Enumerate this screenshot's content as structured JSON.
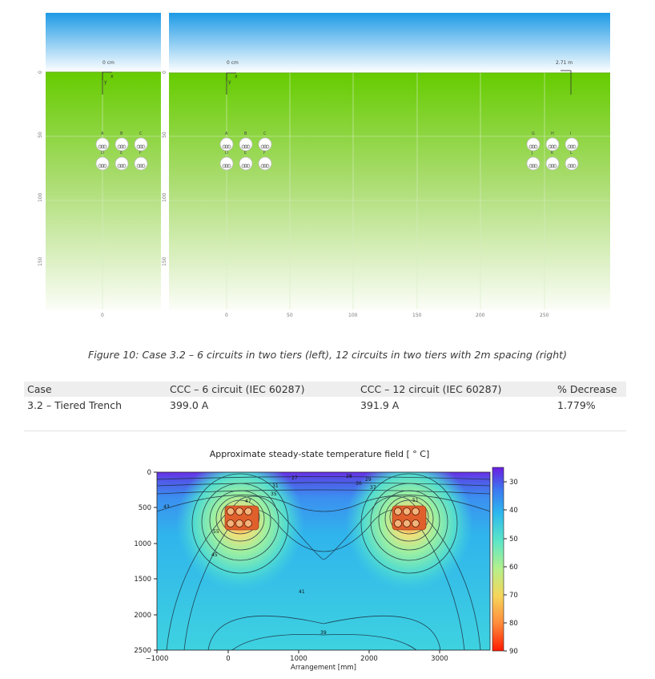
{
  "figure10": {
    "left_panel": {
      "offset_label": "0 cm",
      "axis_x_label": "x",
      "axis_y_label": "y",
      "y_ticks": [
        "0",
        "50",
        "100",
        "150"
      ],
      "x_ticks": [
        "0"
      ],
      "cable_labels_top": [
        "A",
        "B",
        "C"
      ],
      "cable_labels_bottom": [
        "D",
        "E",
        "F"
      ]
    },
    "right_panel": {
      "offset_label_left": "0 cm",
      "offset_label_right": "2.71 m",
      "axis_x_label": "x",
      "axis_y_label": "y",
      "y_ticks": [
        "0",
        "50",
        "100",
        "150"
      ],
      "x_ticks": [
        "0",
        "50",
        "100",
        "150",
        "200",
        "250"
      ],
      "cable_labels_top_left": [
        "A",
        "B",
        "C"
      ],
      "cable_labels_bottom_left": [
        "D",
        "E",
        "F"
      ],
      "cable_labels_top_right": [
        "G",
        "H",
        "I"
      ],
      "cable_labels_bottom_right": [
        "J",
        "K",
        "L"
      ]
    },
    "colors": {
      "sky_top": "#1e9ae6",
      "sky_bottom": "#ffffff",
      "soil_top": "#66cc00",
      "soil_bottom": "#fbfdf7"
    }
  },
  "caption": "Figure 10: Case 3.2 – 6 circuits in two tiers (left), 12 circuits in two tiers with 2m spacing (right)",
  "table": {
    "headers": [
      "Case",
      "CCC – 6 circuit (IEC 60287)",
      "CCC – 12 circuit (IEC 60287)",
      "% Decrease"
    ],
    "rows": [
      [
        "3.2 – Tiered Trench",
        "399.0 A",
        "391.9 A",
        "1.779%"
      ]
    ]
  },
  "heatmap": {
    "title": "Approximate steady-state temperature field [ ° C]",
    "xlabel": "Arrangement [mm]",
    "x_ticks": [
      "−1000",
      "0",
      "1000",
      "2000",
      "3000"
    ],
    "y_ticks": [
      "0",
      "500",
      "1000",
      "1500",
      "2000",
      "2500"
    ],
    "colorbar_ticks": [
      "30",
      "40",
      "50",
      "60",
      "70",
      "80",
      "90"
    ],
    "contour_labels": [
      "27",
      "28",
      "29",
      "30",
      "31",
      "35",
      "37",
      "39",
      "41",
      "43",
      "45",
      "47",
      "51",
      "55"
    ]
  },
  "chart_data": {
    "type": "heatmap",
    "title": "Approximate steady-state temperature field [ ° C]",
    "xlabel": "Arrangement [mm]",
    "ylabel": "",
    "xlim": [
      -1000,
      3750
    ],
    "ylim": [
      2500,
      0
    ],
    "colorbar_range": [
      25,
      90
    ],
    "colorbar_ticks": [
      30,
      40,
      50,
      60,
      70,
      80,
      90
    ],
    "colormap": "rainbow",
    "contour_levels_labeled": [
      27,
      28,
      29,
      30,
      31,
      35,
      37,
      39,
      41,
      43,
      45,
      47,
      51,
      55
    ],
    "hotspots": [
      {
        "x_center": 200,
        "y_center": 625,
        "peak": 90
      },
      {
        "x_center": 2600,
        "y_center": 625,
        "peak": 90
      }
    ]
  }
}
